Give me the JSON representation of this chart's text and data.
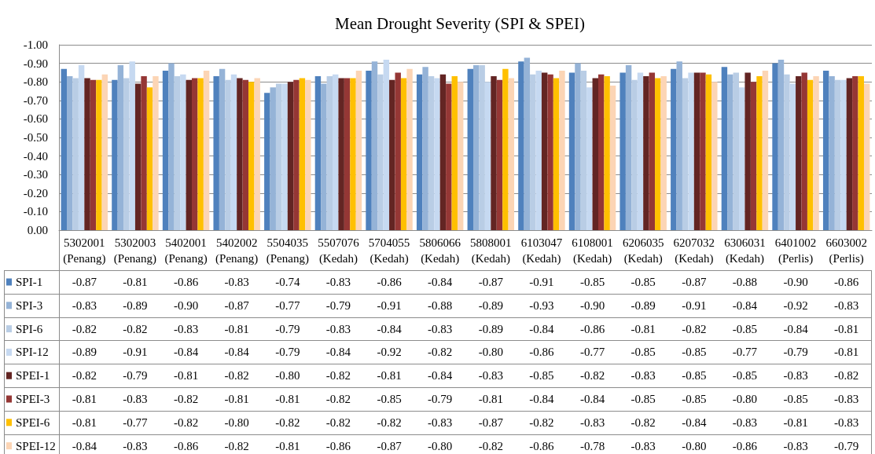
{
  "chart_data": {
    "type": "bar",
    "title": "Mean Drought Severity (SPI & SPEI)",
    "categories": [
      "5302001 (Penang)",
      "5302003 (Penang)",
      "5402001 (Penang)",
      "5402002 (Penang)",
      "5504035 (Penang)",
      "5507076 (Kedah)",
      "5704055 (Kedah)",
      "5806066 (Kedah)",
      "5808001 (Kedah)",
      "6103047 (Kedah)",
      "6108001 (Kedah)",
      "6206035 (Kedah)",
      "6207032 (Kedah)",
      "6306031 (Kedah)",
      "6401002 (Perlis)",
      "6603002 (Perlis)"
    ],
    "series": [
      {
        "name": "SPI-1",
        "color": "#4f81bd",
        "values": [
          -0.87,
          -0.81,
          -0.86,
          -0.83,
          -0.74,
          -0.83,
          -0.86,
          -0.84,
          -0.87,
          -0.91,
          -0.85,
          -0.85,
          -0.87,
          -0.88,
          -0.9,
          -0.86
        ],
        "value_labels": [
          "-0.87",
          "-0.81",
          "-0.86",
          "-0.83",
          "-0.74",
          "-0.83",
          "-0.86",
          "-0.84",
          "-0.87",
          "-0.91",
          "-0.85",
          "-0.85",
          "-0.87",
          "-0.88",
          "-0.90",
          "-0.86"
        ]
      },
      {
        "name": "SPI-3",
        "color": "#95b3d7",
        "values": [
          -0.83,
          -0.89,
          -0.9,
          -0.87,
          -0.77,
          -0.79,
          -0.91,
          -0.88,
          -0.89,
          -0.93,
          -0.9,
          -0.89,
          -0.91,
          -0.84,
          -0.92,
          -0.83
        ],
        "value_labels": [
          "-0.83",
          "-0.89",
          "-0.90",
          "-0.87",
          "-0.77",
          "-0.79",
          "-0.91",
          "-0.88",
          "-0.89",
          "-0.93",
          "-0.90",
          "-0.89",
          "-0.91",
          "-0.84",
          "-0.92",
          "-0.83"
        ]
      },
      {
        "name": "SPI-6",
        "color": "#b9cde5",
        "values": [
          -0.82,
          -0.82,
          -0.83,
          -0.81,
          -0.79,
          -0.83,
          -0.84,
          -0.83,
          -0.89,
          -0.84,
          -0.86,
          -0.81,
          -0.82,
          -0.85,
          -0.84,
          -0.81
        ],
        "value_labels": [
          "-0.82",
          "-0.82",
          "-0.83",
          "-0.81",
          "-0.79",
          "-0.83",
          "-0.84",
          "-0.83",
          "-0.89",
          "-0.84",
          "-0.86",
          "-0.81",
          "-0.82",
          "-0.85",
          "-0.84",
          "-0.81"
        ]
      },
      {
        "name": "SPI-12",
        "color": "#c6d9f1",
        "values": [
          -0.89,
          -0.91,
          -0.84,
          -0.84,
          -0.79,
          -0.84,
          -0.92,
          -0.82,
          -0.8,
          -0.86,
          -0.77,
          -0.85,
          -0.85,
          -0.77,
          -0.79,
          -0.81
        ],
        "value_labels": [
          "-0.89",
          "-0.91",
          "-0.84",
          "-0.84",
          "-0.79",
          "-0.84",
          "-0.92",
          "-0.82",
          "-0.80",
          "-0.86",
          "-0.77",
          "-0.85",
          "-0.85",
          "-0.77",
          "-0.79",
          "-0.81"
        ]
      },
      {
        "name": "SPEI-1",
        "color": "#632523",
        "values": [
          -0.82,
          -0.79,
          -0.81,
          -0.82,
          -0.8,
          -0.82,
          -0.81,
          -0.84,
          -0.83,
          -0.85,
          -0.82,
          -0.83,
          -0.85,
          -0.85,
          -0.83,
          -0.82
        ],
        "value_labels": [
          "-0.82",
          "-0.79",
          "-0.81",
          "-0.82",
          "-0.80",
          "-0.82",
          "-0.81",
          "-0.84",
          "-0.83",
          "-0.85",
          "-0.82",
          "-0.83",
          "-0.85",
          "-0.85",
          "-0.83",
          "-0.82"
        ]
      },
      {
        "name": "SPEI-3",
        "color": "#953735",
        "values": [
          -0.81,
          -0.83,
          -0.82,
          -0.81,
          -0.81,
          -0.82,
          -0.85,
          -0.79,
          -0.81,
          -0.84,
          -0.84,
          -0.85,
          -0.85,
          -0.8,
          -0.85,
          -0.83
        ],
        "value_labels": [
          "-0.81",
          "-0.83",
          "-0.82",
          "-0.81",
          "-0.81",
          "-0.82",
          "-0.85",
          "-0.79",
          "-0.81",
          "-0.84",
          "-0.84",
          "-0.85",
          "-0.85",
          "-0.80",
          "-0.85",
          "-0.83"
        ]
      },
      {
        "name": "SPEI-6",
        "color": "#ffc000",
        "values": [
          -0.81,
          -0.77,
          -0.82,
          -0.8,
          -0.82,
          -0.82,
          -0.82,
          -0.83,
          -0.87,
          -0.82,
          -0.83,
          -0.82,
          -0.84,
          -0.83,
          -0.81,
          -0.83
        ],
        "value_labels": [
          "-0.81",
          "-0.77",
          "-0.82",
          "-0.80",
          "-0.82",
          "-0.82",
          "-0.82",
          "-0.83",
          "-0.87",
          "-0.82",
          "-0.83",
          "-0.82",
          "-0.84",
          "-0.83",
          "-0.81",
          "-0.83"
        ]
      },
      {
        "name": "SPEI-12",
        "color": "#fcd5b5",
        "values": [
          -0.84,
          -0.83,
          -0.86,
          -0.82,
          -0.81,
          -0.86,
          -0.87,
          -0.8,
          -0.82,
          -0.86,
          -0.78,
          -0.83,
          -0.8,
          -0.86,
          -0.83,
          -0.79
        ],
        "value_labels": [
          "-0.84",
          "-0.83",
          "-0.86",
          "-0.82",
          "-0.81",
          "-0.86",
          "-0.87",
          "-0.80",
          "-0.82",
          "-0.86",
          "-0.78",
          "-0.83",
          "-0.80",
          "-0.86",
          "-0.83",
          "-0.79"
        ]
      }
    ],
    "ylim": [
      0,
      -1
    ],
    "yticks": [
      {
        "value": 0,
        "label": "0.00"
      },
      {
        "value": -0.1,
        "label": "-0.10"
      },
      {
        "value": -0.2,
        "label": "-0.20"
      },
      {
        "value": -0.3,
        "label": "-0.30"
      },
      {
        "value": -0.4,
        "label": "-0.40"
      },
      {
        "value": -0.5,
        "label": "-0.50"
      },
      {
        "value": -0.6,
        "label": "-0.60"
      },
      {
        "value": -0.7,
        "label": "-0.70"
      },
      {
        "value": -0.8,
        "label": "-0.80"
      },
      {
        "value": -0.9,
        "label": "-0.90"
      },
      {
        "value": -1,
        "label": "-1.00"
      }
    ],
    "grid": "y",
    "legend": "bottom left"
  }
}
